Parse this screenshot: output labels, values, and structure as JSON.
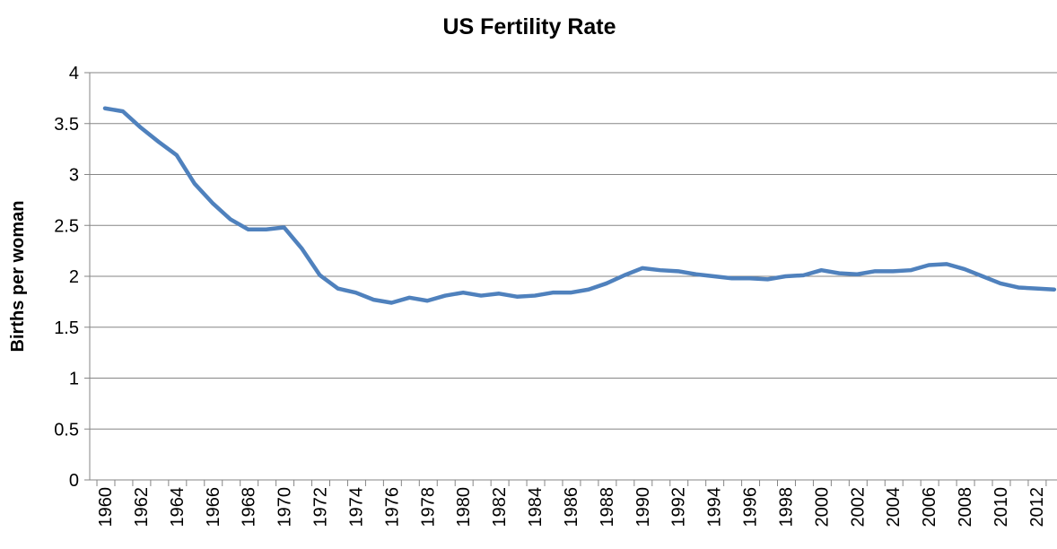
{
  "chart_data": {
    "type": "line",
    "title": "US Fertility Rate",
    "y_label": "Births per woman",
    "categories": [
      "1960",
      null,
      "1962",
      null,
      "1964",
      null,
      "1966",
      null,
      "1968",
      null,
      "1970",
      null,
      "1972",
      null,
      "1974",
      null,
      "1976",
      null,
      "1978",
      null,
      "1980",
      null,
      "1982",
      null,
      "1984",
      null,
      "1986",
      null,
      "1988",
      null,
      "1990",
      null,
      "1992",
      null,
      "1994",
      null,
      "1996",
      null,
      "1998",
      null,
      "2000",
      null,
      "2002",
      null,
      "2004",
      null,
      "2006",
      null,
      "2008",
      null,
      "2010",
      null,
      "2012",
      null
    ],
    "values": [
      3.65,
      3.62,
      3.46,
      3.32,
      3.19,
      2.91,
      2.72,
      2.56,
      2.46,
      2.46,
      2.48,
      2.27,
      2.01,
      1.88,
      1.84,
      1.77,
      1.74,
      1.79,
      1.76,
      1.81,
      1.84,
      1.81,
      1.83,
      1.8,
      1.81,
      1.84,
      1.84,
      1.87,
      1.93,
      2.01,
      2.08,
      2.06,
      2.05,
      2.02,
      2.0,
      1.98,
      1.98,
      1.97,
      2.0,
      2.01,
      2.06,
      2.03,
      2.02,
      2.05,
      2.05,
      2.06,
      2.11,
      2.12,
      2.07,
      2.0,
      1.93,
      1.89,
      1.88,
      1.87
    ],
    "color": "#4f81bd",
    "ylim": [
      0,
      4
    ],
    "yticks": [
      0,
      0.5,
      1,
      1.5,
      2,
      2.5,
      3,
      3.5,
      4
    ],
    "grid": true
  }
}
